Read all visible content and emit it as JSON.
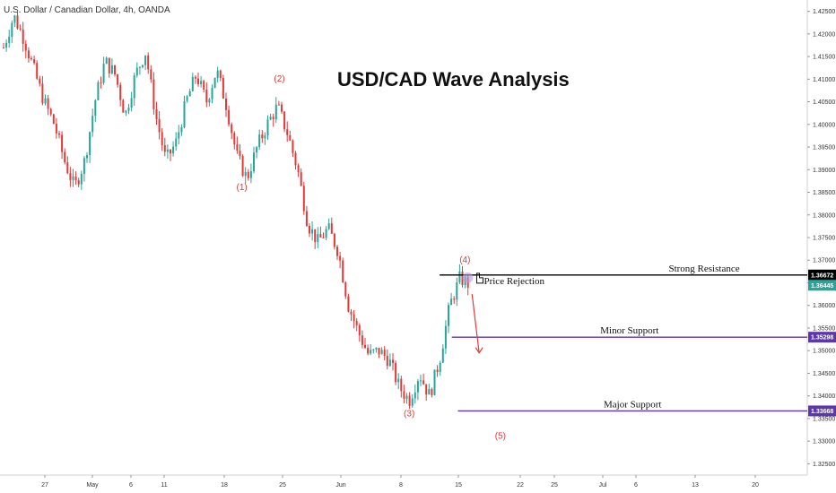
{
  "symbol_line": "U.S. Dollar / Canadian Dollar, 4h, OANDA",
  "chart_data": {
    "type": "candlestick",
    "title": "USD/CAD Wave Analysis",
    "ylim": [
      1.3225,
      1.4275
    ],
    "y_ticks": [
      "1.42500",
      "1.42000",
      "1.41500",
      "1.41000",
      "1.40500",
      "1.40000",
      "1.39500",
      "1.39000",
      "1.38500",
      "1.38000",
      "1.37500",
      "1.37000",
      "1.36500",
      "1.36000",
      "1.35500",
      "1.35000",
      "1.34500",
      "1.34000",
      "1.33500",
      "1.33000",
      "1.32500"
    ],
    "x_ticks": [
      "27",
      "May",
      "6",
      "11",
      "18",
      "25",
      "Jun",
      "8",
      "15",
      "22",
      "25",
      "Jul",
      "6",
      "13",
      "20"
    ],
    "price_path": [
      [
        0,
        1.417
      ],
      [
        1,
        1.424
      ],
      [
        2,
        1.419
      ],
      [
        3,
        1.412
      ],
      [
        4,
        1.405
      ],
      [
        5,
        1.4
      ],
      [
        6,
        1.392
      ],
      [
        7,
        1.386
      ],
      [
        8,
        1.392
      ],
      [
        9,
        1.405
      ],
      [
        10,
        1.414
      ],
      [
        11,
        1.411
      ],
      [
        12,
        1.402
      ],
      [
        13,
        1.411
      ],
      [
        14,
        1.416
      ],
      [
        15,
        1.402
      ],
      [
        16,
        1.392
      ],
      [
        17,
        1.396
      ],
      [
        18,
        1.405
      ],
      [
        19,
        1.411
      ],
      [
        20,
        1.405
      ],
      [
        21,
        1.412
      ],
      [
        22,
        1.404
      ],
      [
        23,
        1.393
      ],
      [
        24,
        1.388
      ],
      [
        25,
        1.395
      ],
      [
        26,
        1.4
      ],
      [
        27,
        1.404
      ],
      [
        28,
        1.398
      ],
      [
        29,
        1.39
      ],
      [
        30,
        1.378
      ],
      [
        31,
        1.374
      ],
      [
        32,
        1.377
      ],
      [
        33,
        1.372
      ],
      [
        34,
        1.36
      ],
      [
        35,
        1.354
      ],
      [
        36,
        1.349
      ],
      [
        37,
        1.35
      ],
      [
        38,
        1.348
      ],
      [
        39,
        1.342
      ],
      [
        40,
        1.339
      ],
      [
        41,
        1.345
      ],
      [
        42,
        1.34
      ],
      [
        43,
        1.348
      ],
      [
        44,
        1.36
      ],
      [
        45,
        1.366
      ],
      [
        46,
        1.3645
      ]
    ],
    "wave_labels": [
      {
        "label": "(1)",
        "x": 23.5,
        "y": 1.3855
      },
      {
        "label": "(2)",
        "x": 27.2,
        "y": 1.4095
      },
      {
        "label": "(3)",
        "x": 40.0,
        "y": 1.3355
      },
      {
        "label": "(4)",
        "x": 45.5,
        "y": 1.3695
      },
      {
        "label": "(5)",
        "x": 49.0,
        "y": 1.3305
      }
    ],
    "levels": [
      {
        "name": "Strong Resistance",
        "value": 1.36672,
        "tag": "1.36672",
        "color": "#000000",
        "x_start": 43.0
      },
      {
        "name": "Minor Support",
        "value": 1.35298,
        "tag": "1.35298",
        "color": "#5e35b1",
        "x_start": 44.2
      },
      {
        "name": "Major Support",
        "value": 1.33668,
        "tag": "1.33668",
        "color": "#5e35b1",
        "x_start": 44.8
      }
    ],
    "current_price": {
      "tag": "1.36445",
      "value": 1.36445,
      "color": "#26a69a"
    },
    "annotation": "Price Rejection",
    "bull_color": "#26a69a",
    "bear_color": "#e53935"
  }
}
